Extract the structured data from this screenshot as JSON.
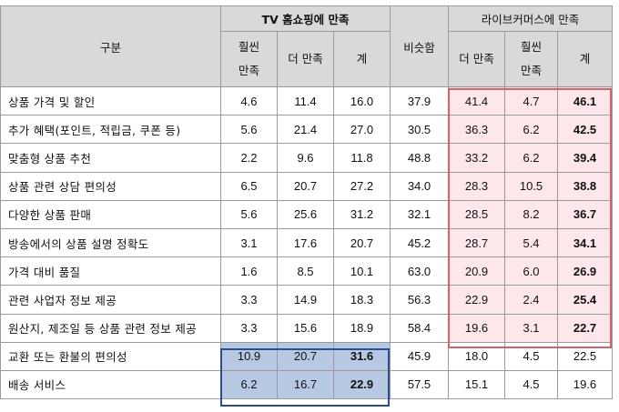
{
  "header": {
    "category": "구분",
    "tv_group": "TV 홈쇼핑에 만족",
    "similar": "비슷함",
    "live_group": "라이브커머스에 만족",
    "tv_cols": [
      "훨씬\n만족",
      "더 만족",
      "계"
    ],
    "live_cols": [
      "더 만족",
      "훨씬\n만족",
      "계"
    ]
  },
  "rows": [
    {
      "item": "상품 가격 및 할인",
      "values": [
        "4.6",
        "11.4",
        "16.0",
        "37.9",
        "41.4",
        "4.7",
        "46.1"
      ]
    },
    {
      "item": "추가 혜택(포인트, 적립금, 쿠폰 등)",
      "values": [
        "5.6",
        "21.4",
        "27.0",
        "30.5",
        "36.3",
        "6.2",
        "42.5"
      ]
    },
    {
      "item": "맞춤형 상품 추천",
      "values": [
        "2.2",
        "9.6",
        "11.8",
        "48.8",
        "33.2",
        "6.2",
        "39.4"
      ]
    },
    {
      "item": "상품 관련 상담 편의성",
      "values": [
        "6.5",
        "20.7",
        "27.2",
        "34.0",
        "28.3",
        "10.5",
        "38.8"
      ]
    },
    {
      "item": "다양한 상품 판매",
      "values": [
        "5.6",
        "25.6",
        "31.2",
        "32.1",
        "28.5",
        "8.2",
        "36.7"
      ]
    },
    {
      "item": "방송에서의 상품 설명 정확도",
      "values": [
        "3.1",
        "17.6",
        "20.7",
        "45.2",
        "28.7",
        "5.4",
        "34.1"
      ]
    },
    {
      "item": "가격 대비 품질",
      "values": [
        "1.6",
        "8.5",
        "10.1",
        "63.0",
        "20.9",
        "6.0",
        "26.9"
      ]
    },
    {
      "item": "관련 사업자 정보 제공",
      "values": [
        "3.3",
        "14.9",
        "18.3",
        "56.3",
        "22.9",
        "2.4",
        "25.4"
      ]
    },
    {
      "item": "원산지, 제조일 등 상품 관련 정보 제공",
      "values": [
        "3.3",
        "15.6",
        "18.9",
        "58.4",
        "19.6",
        "3.1",
        "22.7"
      ]
    },
    {
      "item": "교환 또는 환불의 편의성",
      "values": [
        "10.9",
        "20.7",
        "31.6",
        "45.9",
        "18.0",
        "4.5",
        "22.5"
      ]
    },
    {
      "item": "배송 서비스",
      "values": [
        "6.2",
        "16.7",
        "22.9",
        "57.5",
        "15.1",
        "4.5",
        "19.6"
      ]
    }
  ],
  "colors": {
    "live_highlight": "#fde7ea",
    "live_border": "#d2626c",
    "tv_highlight": "#b7c8e2",
    "tv_border": "#2a4f8c",
    "header_bg": "#d9d9d9"
  }
}
